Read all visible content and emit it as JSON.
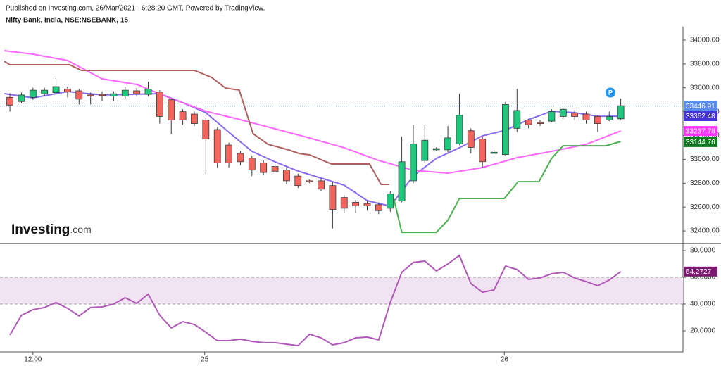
{
  "header": {
    "published": "Published on Investing.com, 26/Mar/2021 - 6:28:20 GMT, Powered by TradingView.",
    "symbol": "Nifty Bank, India, NSE:NSEBANK, 15",
    "logo": {
      "brand": "Investing",
      "suffix": ".com"
    }
  },
  "chart_data": [
    {
      "type": "candlestick",
      "x": [
        0,
        1,
        2,
        3,
        4,
        5,
        6,
        7,
        8,
        9,
        10,
        11,
        12,
        13,
        14,
        15,
        16,
        17,
        18,
        19,
        20,
        21,
        22,
        23,
        24,
        25,
        26,
        27,
        28,
        29,
        30,
        31,
        32,
        33,
        34,
        35,
        36,
        37,
        38,
        39,
        40,
        41,
        42,
        43,
        44,
        45,
        46,
        47,
        48,
        49,
        50,
        51,
        52,
        53
      ],
      "open": [
        33520,
        33485,
        33520,
        33550,
        33560,
        33590,
        33575,
        33540,
        33545,
        33530,
        33530,
        33575,
        33545,
        33565,
        33500,
        33400,
        33380,
        33330,
        33250,
        33120,
        33050,
        33010,
        32970,
        32940,
        32910,
        32860,
        32820,
        32820,
        32780,
        32680,
        32640,
        32630,
        32620,
        32590,
        32650,
        32820,
        32990,
        33080,
        33080,
        33130,
        33240,
        33170,
        33050,
        33040,
        33260,
        33330,
        33310,
        33320,
        33360,
        33390,
        33380,
        33360,
        33330,
        33340
      ],
      "high": [
        33555,
        33560,
        33600,
        33600,
        33680,
        33610,
        33590,
        33560,
        33570,
        33570,
        33610,
        33600,
        33650,
        33580,
        33510,
        33420,
        33400,
        33350,
        33270,
        33140,
        33070,
        33030,
        32990,
        32960,
        32930,
        32880,
        32830,
        32840,
        32810,
        32700,
        32660,
        32650,
        32640,
        32730,
        33190,
        33290,
        33290,
        33100,
        33280,
        33550,
        33260,
        33190,
        33080,
        33480,
        33590,
        33340,
        33330,
        33420,
        33430,
        33410,
        33400,
        33370,
        33400,
        33510
      ],
      "low": [
        33400,
        33470,
        33500,
        33530,
        33540,
        33520,
        33460,
        33460,
        33490,
        33490,
        33510,
        33530,
        33530,
        33300,
        33210,
        33290,
        33280,
        32880,
        32930,
        32930,
        32950,
        32860,
        32870,
        32880,
        32790,
        32760,
        32800,
        32730,
        32420,
        32550,
        32550,
        32570,
        32540,
        32560,
        32640,
        32800,
        32970,
        33070,
        33060,
        33120,
        33050,
        32930,
        33040,
        33030,
        33230,
        33260,
        33280,
        33310,
        33340,
        33330,
        33300,
        33230,
        33320,
        33330
      ],
      "close": [
        33455,
        33540,
        33580,
        33580,
        33610,
        33565,
        33505,
        33530,
        33535,
        33550,
        33580,
        33550,
        33590,
        33360,
        33330,
        33330,
        33300,
        33170,
        32970,
        32970,
        32980,
        32910,
        32890,
        32900,
        32820,
        32780,
        32810,
        32750,
        32580,
        32590,
        32610,
        32610,
        32570,
        32710,
        32980,
        33130,
        33160,
        33090,
        33180,
        33370,
        33100,
        32980,
        33060,
        33460,
        33410,
        33290,
        33300,
        33400,
        33420,
        33360,
        33330,
        33300,
        33360,
        33450
      ],
      "up_color": "#1ec97e",
      "down_color": "#f2645c",
      "border_color": "#3a3a3a",
      "lines": [
        {
          "color": "#8a6cf0",
          "x": [
            -0.5,
            2,
            5,
            8,
            11,
            13,
            15,
            17,
            19,
            21,
            23,
            25,
            27,
            29,
            31,
            33,
            35,
            37,
            39,
            41,
            43,
            45,
            47,
            49,
            51,
            53
          ],
          "values": [
            33551,
            33516,
            33569,
            33540,
            33546,
            33551,
            33475,
            33392,
            33227,
            33067,
            32979,
            32902,
            32843,
            32784,
            32654,
            32607,
            32861,
            33008,
            33097,
            33197,
            33244,
            33333,
            33404,
            33392,
            33362,
            33362
          ]
        },
        {
          "color": "#ff66ff",
          "x": [
            -0.5,
            2,
            5,
            8,
            11,
            14,
            17,
            20,
            23,
            26,
            29,
            32,
            35,
            38,
            41,
            44,
            47,
            50,
            53
          ],
          "values": [
            33911,
            33882,
            33829,
            33675,
            33628,
            33510,
            33404,
            33333,
            33256,
            33179,
            33097,
            32991,
            32908,
            32884,
            32931,
            33014,
            33067,
            33126,
            33238
          ]
        },
        {
          "color": "#b06060",
          "x": [
            -0.5,
            0,
            5.2,
            6.2,
            16,
            17.5,
            18.7,
            19.9,
            21.1,
            22.4,
            24.2,
            25.1,
            26,
            27.9,
            31.2,
            32.2,
            32.9
          ],
          "values": [
            33823,
            33793,
            33793,
            33746,
            33746,
            33687,
            33598,
            33581,
            33215,
            33126,
            33079,
            33049,
            33038,
            32961,
            32961,
            32790,
            32790
          ]
        },
        {
          "color": "#4caf50",
          "x": [
            33.2,
            34,
            37,
            38,
            39,
            42.9,
            44.1,
            45.9,
            47,
            48,
            51.7,
            53
          ],
          "values": [
            32713,
            32388,
            32388,
            32489,
            32672,
            32672,
            32813,
            32813,
            33008,
            33114,
            33114,
            33150
          ]
        }
      ],
      "price_labels": [
        {
          "value": 33446.91,
          "color": "#5b8def",
          "dotted": true
        },
        {
          "value": 33362.48,
          "color": "#4332d6"
        },
        {
          "value": 33237.78,
          "color": "#ff33ff"
        },
        {
          "value": 33144.76,
          "color": "#0b7a1e"
        }
      ],
      "marker": {
        "label": "P",
        "x": 52.1,
        "value": 33560,
        "color": "#2196f3"
      },
      "xlim": [
        -0.86,
        58.4
      ],
      "ylim": [
        32300,
        34112
      ],
      "yticks": [
        {
          "value": 32400,
          "label": "32400.00"
        },
        {
          "value": 32600,
          "label": "32600.00"
        },
        {
          "value": 32800,
          "label": "32800.00"
        },
        {
          "value": 33000,
          "label": "33000.00"
        },
        {
          "value": 33200,
          "label": "33200.00"
        },
        {
          "value": 33400,
          "label": "33400.00"
        },
        {
          "value": 33600,
          "label": "33600.00"
        },
        {
          "value": 33800,
          "label": "33800.00"
        },
        {
          "value": 34000,
          "label": "34000.00"
        }
      ]
    },
    {
      "type": "line",
      "x": [
        0,
        1,
        2,
        3,
        4,
        5,
        6,
        7,
        8,
        9,
        10,
        11,
        12,
        13,
        14,
        15,
        16,
        17,
        18,
        19,
        20,
        21,
        22,
        23,
        24,
        25,
        26,
        27,
        28,
        29,
        30,
        31,
        32,
        33,
        34,
        35,
        36,
        37,
        38,
        39,
        40,
        41,
        42,
        43,
        44,
        45,
        46,
        47,
        48,
        49,
        50,
        51,
        52,
        53
      ],
      "values": [
        16.8,
        31.6,
        35.8,
        37.4,
        41.1,
        36.8,
        31.1,
        37.4,
        37.9,
        40,
        44.7,
        40.5,
        47.4,
        31.6,
        22.1,
        26.8,
        24.7,
        18.9,
        12.6,
        12.6,
        13.7,
        12.1,
        11.1,
        11.1,
        10,
        8.9,
        17.4,
        14.7,
        9.5,
        11.1,
        14.7,
        15.3,
        13.2,
        41.1,
        63.7,
        71.1,
        72.1,
        64.7,
        70,
        76.3,
        55.3,
        48.9,
        50.5,
        68.4,
        65.8,
        58.4,
        59.5,
        62.6,
        63.7,
        59.5,
        56.8,
        53.7,
        57.9,
        64.27
      ],
      "color": "#b058b8",
      "band": [
        40,
        60
      ],
      "band_color": "#f2e3f2",
      "last_label": {
        "value": 64.2727,
        "color": "#7b1a6e"
      },
      "xlim": [
        -0.86,
        58.4
      ],
      "ylim": [
        4.2,
        84.7
      ],
      "yticks": [
        {
          "value": 20,
          "label": "20.0000"
        },
        {
          "value": 40,
          "label": "40.0000"
        },
        {
          "value": 60,
          "label": "60.0000"
        },
        {
          "value": 80,
          "label": "80.0000"
        }
      ],
      "xticks": [
        {
          "value": 2,
          "label": "12:00"
        },
        {
          "value": 16.9,
          "label": "25"
        },
        {
          "value": 42.9,
          "label": "26"
        }
      ]
    }
  ]
}
